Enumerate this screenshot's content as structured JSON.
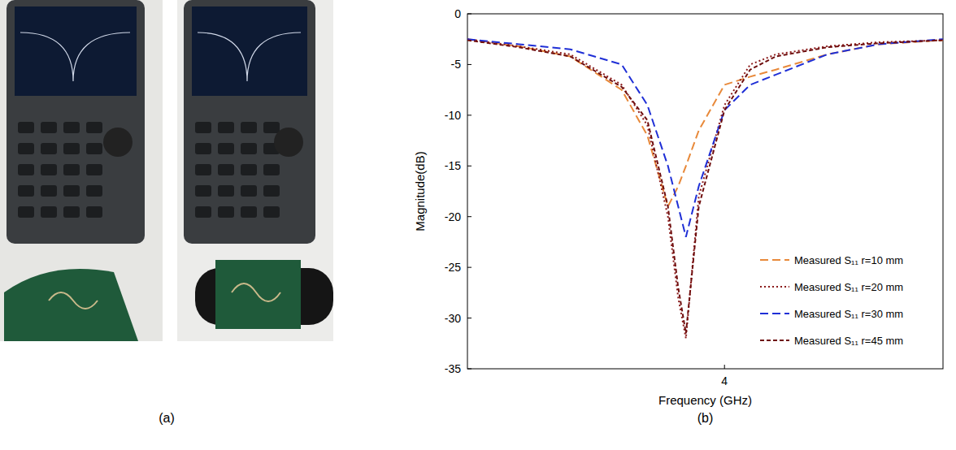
{
  "chart_data": {
    "type": "line",
    "x_label": "Frequency (GHz)",
    "y_label": "Magnitude(dB)",
    "x": [
      3.0,
      3.2,
      3.4,
      3.6,
      3.7,
      3.78,
      3.82,
      3.85,
      3.9,
      4.0,
      4.1,
      4.2,
      4.4,
      4.6,
      4.85
    ],
    "xlim": [
      3.0,
      4.85
    ],
    "xticks": [
      4
    ],
    "ylim": [
      -35,
      0
    ],
    "yticks": [
      0,
      -5,
      -10,
      -15,
      -20,
      -25,
      -30,
      -35
    ],
    "grid": false,
    "legend": "lower right",
    "series": [
      {
        "name": "Measured S₁₁ r=10 mm",
        "color": "#e8893a",
        "line_style": "dashed",
        "values": [
          -2.5,
          -3.2,
          -4.2,
          -7.5,
          -12,
          -19,
          -17,
          -15,
          -11.5,
          -7,
          -6.2,
          -5.5,
          -4,
          -3,
          -2.6
        ]
      },
      {
        "name": "Measured S₁₁ r=20 mm",
        "color": "#8b1a1a",
        "line_style": "dotted",
        "values": [
          -2.5,
          -3.2,
          -4,
          -7,
          -11,
          -20,
          -28,
          -32,
          -18,
          -9,
          -5,
          -4,
          -3.2,
          -2.8,
          -2.6
        ]
      },
      {
        "name": "Measured S₁₁ r=30 mm",
        "color": "#1f2fd6",
        "line_style": "dashed",
        "values": [
          -2.5,
          -3,
          -3.5,
          -5,
          -9,
          -15,
          -19,
          -22,
          -17,
          -9.5,
          -7,
          -6,
          -4,
          -3,
          -2.5
        ]
      },
      {
        "name": "Measured S₁₁ r=45 mm",
        "color": "#6e0d0d",
        "line_style": "short-dashed",
        "values": [
          -2.6,
          -3.3,
          -4.2,
          -7.2,
          -10.5,
          -19,
          -27,
          -31.5,
          -19,
          -9.5,
          -5.5,
          -4.2,
          -3.3,
          -2.9,
          -2.6
        ]
      }
    ]
  },
  "panel_labels": [
    "(a)",
    "(b)"
  ]
}
